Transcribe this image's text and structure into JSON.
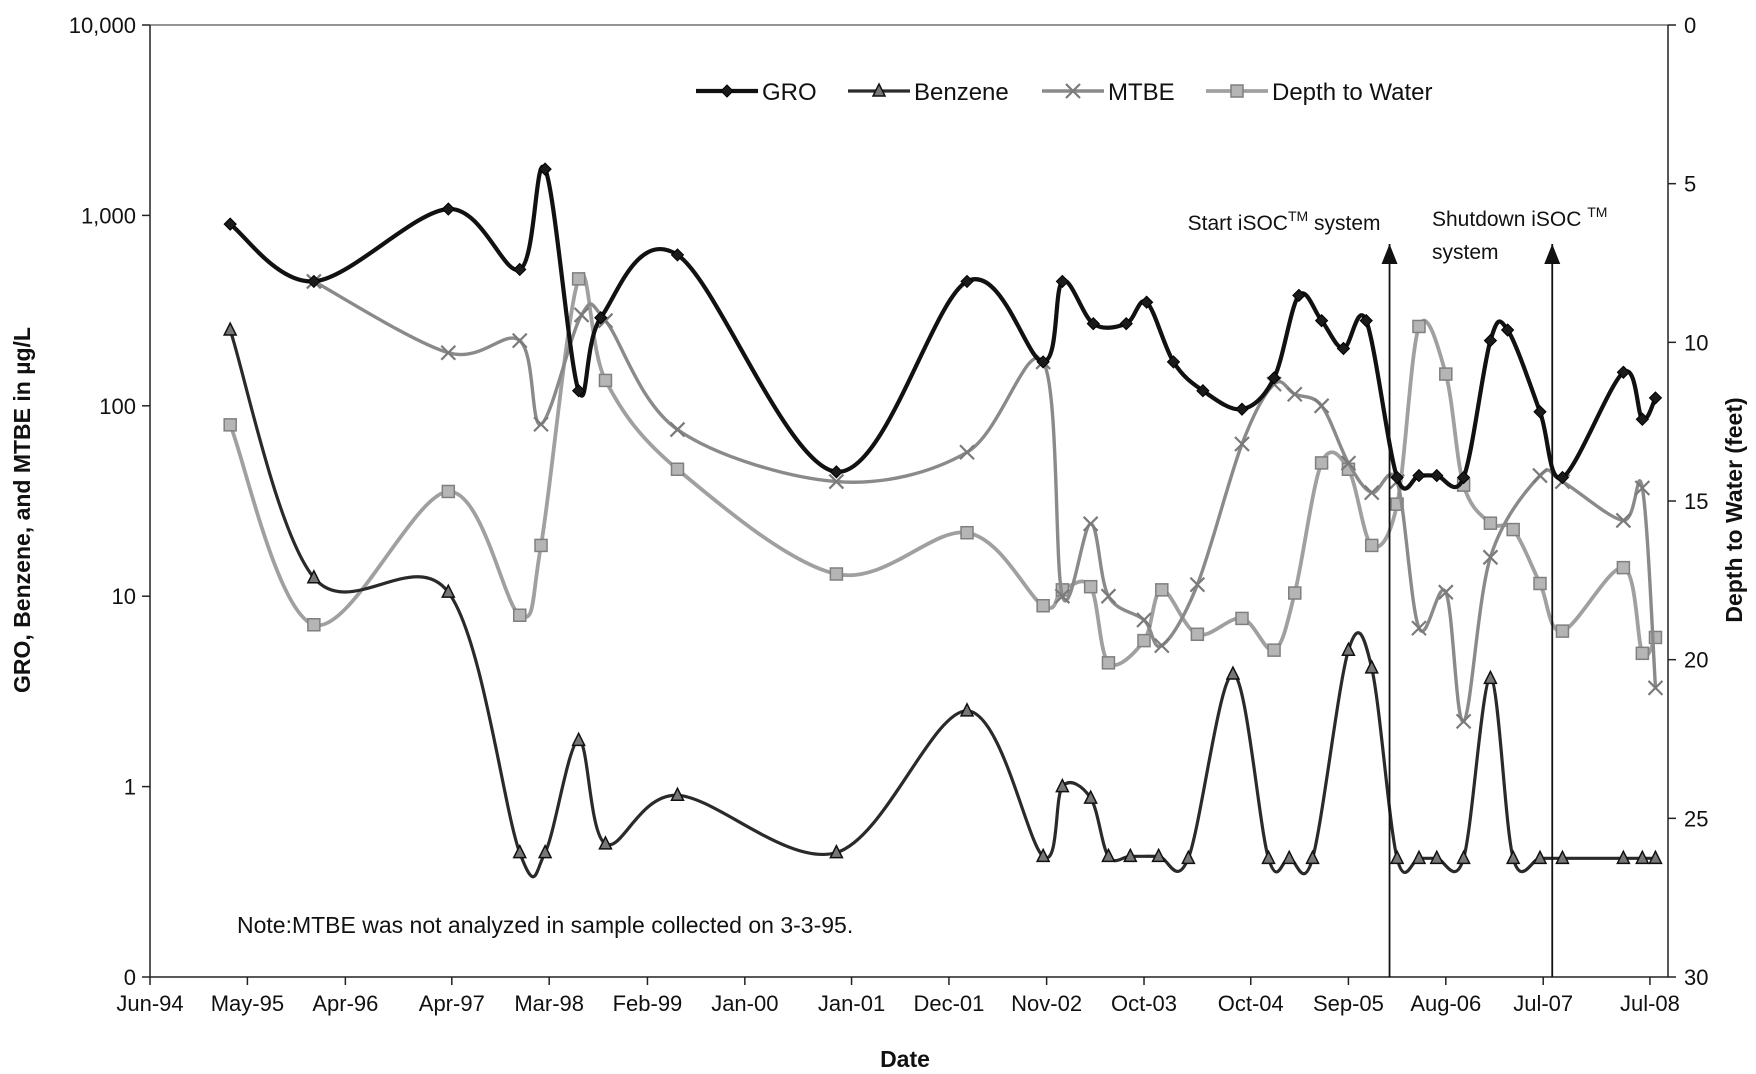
{
  "chart_data": {
    "type": "line",
    "title": "",
    "xlabel": "Date",
    "ylabel": "GRO, Benzene, and MTBE in µg/L",
    "y2label": "Depth to Water (feet)",
    "yscale": "log",
    "ylim": [
      0.1,
      10000
    ],
    "y2lim": [
      0,
      30
    ],
    "y2_inverted": true,
    "xlim": [
      "1994-06-01",
      "2008-09-01"
    ],
    "x_tick_labels": [
      "Jun-94",
      "May-95",
      "Apr-96",
      "Apr-97",
      "Mar-98",
      "Feb-99",
      "Jan-00",
      "Jan-01",
      "Dec-01",
      "Nov-02",
      "Oct-03",
      "Oct-04",
      "Sep-05",
      "Aug-06",
      "Jul-07",
      "Jul-08"
    ],
    "x_tick_dates": [
      "1994-06-01",
      "1995-05-01",
      "1996-04-01",
      "1997-04-01",
      "1998-03-01",
      "1999-02-01",
      "2000-01-01",
      "2001-01-01",
      "2001-12-01",
      "2002-11-01",
      "2003-10-01",
      "2004-10-01",
      "2005-09-01",
      "2006-08-01",
      "2007-07-01",
      "2008-07-01"
    ],
    "y_tick_labels": [
      "0",
      "1",
      "10",
      "100",
      "1,000",
      "10,000"
    ],
    "y_tick_values": [
      0.1,
      1,
      10,
      100,
      1000,
      10000
    ],
    "y2_tick_labels": [
      "0",
      "5",
      "10",
      "15",
      "20",
      "25",
      "30"
    ],
    "y2_tick_values": [
      0,
      5,
      10,
      15,
      20,
      25,
      30
    ],
    "legend": {
      "position": "top-center"
    },
    "grid": false,
    "series": [
      {
        "name": "GRO",
        "axis": "left",
        "color": "#1a1a1a",
        "marker": "diamond",
        "points": [
          [
            "1995-03-03",
            900
          ],
          [
            "1995-12-15",
            450
          ],
          [
            "1997-03-20",
            1080
          ],
          [
            "1997-11-20",
            520
          ],
          [
            "1998-02-15",
            1750
          ],
          [
            "1998-06-10",
            120
          ],
          [
            "1998-08-25",
            290
          ],
          [
            "1999-05-15",
            620
          ],
          [
            "2000-11-10",
            45
          ],
          [
            "2002-02-01",
            450
          ],
          [
            "2002-10-20",
            170
          ],
          [
            "2002-12-25",
            450
          ],
          [
            "2003-04-10",
            270
          ],
          [
            "2003-08-01",
            270
          ],
          [
            "2003-10-10",
            350
          ],
          [
            "2004-01-10",
            170
          ],
          [
            "2004-04-20",
            120
          ],
          [
            "2004-09-01",
            96
          ],
          [
            "2004-12-20",
            140
          ],
          [
            "2005-03-15",
            380
          ],
          [
            "2005-06-01",
            280
          ],
          [
            "2005-08-15",
            200
          ],
          [
            "2005-11-01",
            280
          ],
          [
            "2006-02-15",
            42
          ],
          [
            "2006-05-01",
            43
          ],
          [
            "2006-07-01",
            43
          ],
          [
            "2006-10-01",
            42
          ],
          [
            "2007-01-01",
            220
          ],
          [
            "2007-03-01",
            250
          ],
          [
            "2007-06-20",
            93
          ],
          [
            "2007-09-05",
            42
          ],
          [
            "2008-04-01",
            150
          ],
          [
            "2008-06-05",
            85
          ],
          [
            "2008-07-20",
            110
          ]
        ]
      },
      {
        "name": "Benzene",
        "axis": "left",
        "color": "#333333",
        "marker": "triangle",
        "points": [
          [
            "1995-03-03",
            250
          ],
          [
            "1995-12-15",
            12.5
          ],
          [
            "1997-03-20",
            10.5
          ],
          [
            "1997-11-20",
            0.45
          ],
          [
            "1998-02-15",
            0.45
          ],
          [
            "1998-06-10",
            1.75
          ],
          [
            "1998-09-10",
            0.5
          ],
          [
            "1999-05-15",
            0.9
          ],
          [
            "2000-11-10",
            0.45
          ],
          [
            "2002-02-01",
            2.5
          ],
          [
            "2002-10-20",
            0.43
          ],
          [
            "2002-12-25",
            1.0
          ],
          [
            "2003-04-01",
            0.87
          ],
          [
            "2003-06-01",
            0.43
          ],
          [
            "2003-08-15",
            0.43
          ],
          [
            "2003-11-20",
            0.43
          ],
          [
            "2004-03-01",
            0.42
          ],
          [
            "2004-08-01",
            3.9
          ],
          [
            "2004-12-01",
            0.42
          ],
          [
            "2005-02-10",
            0.42
          ],
          [
            "2005-05-01",
            0.42
          ],
          [
            "2005-09-01",
            5.2
          ],
          [
            "2005-11-20",
            4.2
          ],
          [
            "2006-02-15",
            0.42
          ],
          [
            "2006-05-01",
            0.42
          ],
          [
            "2006-07-01",
            0.42
          ],
          [
            "2006-10-01",
            0.42
          ],
          [
            "2007-01-01",
            3.7
          ],
          [
            "2007-03-20",
            0.42
          ],
          [
            "2007-06-20",
            0.42
          ],
          [
            "2007-09-05",
            0.42
          ],
          [
            "2008-04-01",
            0.42
          ],
          [
            "2008-06-05",
            0.42
          ],
          [
            "2008-07-20",
            0.42
          ]
        ]
      },
      {
        "name": "MTBE",
        "axis": "left",
        "color": "#8c8c8c",
        "marker": "x",
        "points": [
          [
            "1995-12-15",
            450
          ],
          [
            "1997-03-20",
            190
          ],
          [
            "1997-11-20",
            220
          ],
          [
            "1998-02-01",
            80
          ],
          [
            "1998-06-20",
            300
          ],
          [
            "1998-09-10",
            280
          ],
          [
            "1999-05-15",
            75
          ],
          [
            "2000-11-10",
            40
          ],
          [
            "2002-02-01",
            57
          ],
          [
            "2002-10-20",
            170
          ],
          [
            "2002-12-25",
            10
          ],
          [
            "2003-04-01",
            24
          ],
          [
            "2003-06-01",
            10
          ],
          [
            "2003-10-01",
            7.5
          ],
          [
            "2003-12-01",
            5.5
          ],
          [
            "2004-04-01",
            11.5
          ],
          [
            "2004-09-01",
            63
          ],
          [
            "2004-12-20",
            130
          ],
          [
            "2005-03-01",
            115
          ],
          [
            "2005-06-01",
            100
          ],
          [
            "2005-09-01",
            50
          ],
          [
            "2005-11-20",
            35
          ],
          [
            "2006-02-15",
            40
          ],
          [
            "2006-05-01",
            6.8
          ],
          [
            "2006-08-01",
            10.5
          ],
          [
            "2006-10-01",
            2.2
          ],
          [
            "2007-01-01",
            16
          ],
          [
            "2007-06-20",
            43
          ],
          [
            "2007-09-05",
            40
          ],
          [
            "2008-04-01",
            25
          ],
          [
            "2008-06-05",
            37
          ],
          [
            "2008-07-20",
            3.3
          ]
        ]
      },
      {
        "name": "Depth to Water",
        "axis": "right",
        "color": "#9a9a9a",
        "marker": "square",
        "points": [
          [
            "1995-03-03",
            12.6
          ],
          [
            "1995-12-15",
            18.9
          ],
          [
            "1997-03-20",
            14.7
          ],
          [
            "1997-11-20",
            18.6
          ],
          [
            "1998-02-01",
            16.4
          ],
          [
            "1998-06-10",
            8.0
          ],
          [
            "1998-09-10",
            11.2
          ],
          [
            "1999-05-15",
            14.0
          ],
          [
            "2000-11-10",
            17.3
          ],
          [
            "2002-02-01",
            16.0
          ],
          [
            "2002-10-20",
            18.3
          ],
          [
            "2002-12-25",
            17.8
          ],
          [
            "2003-04-01",
            17.7
          ],
          [
            "2003-06-01",
            20.1
          ],
          [
            "2003-10-01",
            19.4
          ],
          [
            "2003-12-01",
            17.8
          ],
          [
            "2004-04-01",
            19.2
          ],
          [
            "2004-09-01",
            18.7
          ],
          [
            "2004-12-20",
            19.7
          ],
          [
            "2005-03-01",
            17.9
          ],
          [
            "2005-06-01",
            13.8
          ],
          [
            "2005-09-01",
            14.0
          ],
          [
            "2005-11-20",
            16.4
          ],
          [
            "2006-02-15",
            15.1
          ],
          [
            "2006-05-01",
            9.5
          ],
          [
            "2006-08-01",
            11.0
          ],
          [
            "2006-10-01",
            14.5
          ],
          [
            "2007-01-01",
            15.7
          ],
          [
            "2007-03-20",
            15.9
          ],
          [
            "2007-06-20",
            17.6
          ],
          [
            "2007-09-05",
            19.1
          ],
          [
            "2008-04-01",
            17.1
          ],
          [
            "2008-06-05",
            19.8
          ],
          [
            "2008-07-20",
            19.3
          ]
        ]
      }
    ],
    "annotations": [
      {
        "text": "Start iSOC",
        "sup": "TM",
        "text2": " system",
        "date": "2006-01-20"
      },
      {
        "text": "Shutdown iSOC ",
        "sup": "TM",
        "line2": "system",
        "date": "2007-08-01"
      }
    ],
    "note": "Note:MTBE was not analyzed in sample collected on 3-3-95."
  }
}
